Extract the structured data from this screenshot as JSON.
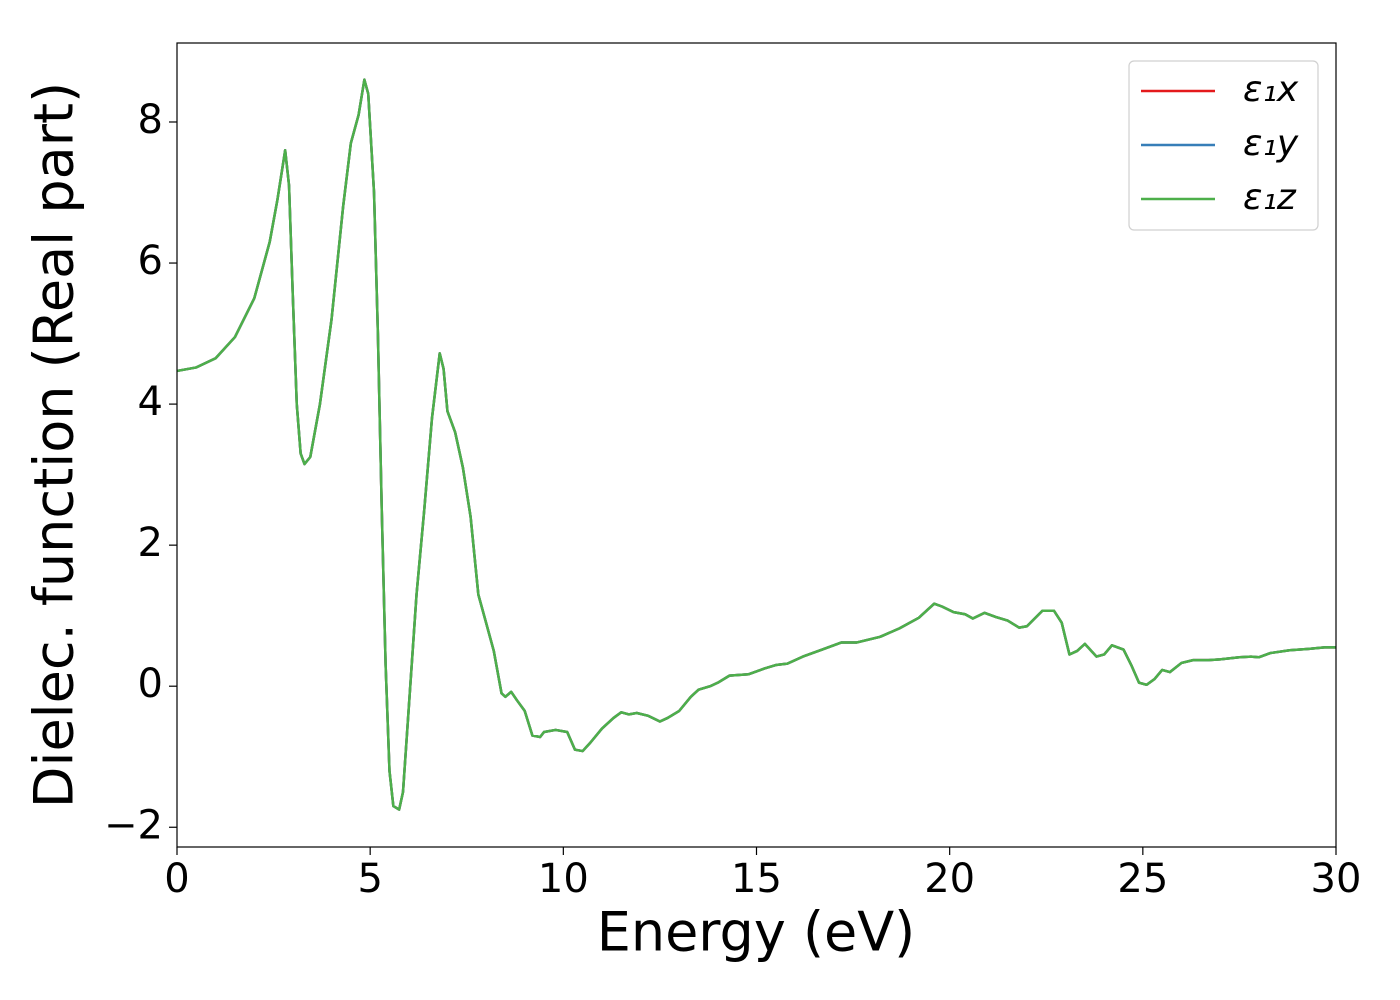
{
  "chart_data": {
    "type": "line",
    "xlabel": "Energy (eV)",
    "ylabel": "Dielec. function (Real part)",
    "xlim": [
      0,
      30
    ],
    "ylim": [
      -2.28,
      9.12
    ],
    "xticks": [
      0,
      5,
      10,
      15,
      20,
      25,
      30
    ],
    "yticks": [
      {
        "value": -2,
        "label": "−2"
      },
      0,
      2,
      4,
      6,
      8
    ],
    "legend": "upper right",
    "grid": false,
    "x": [
      0,
      0.5,
      1.0,
      1.5,
      2.0,
      2.4,
      2.6,
      2.8,
      2.9,
      3.0,
      3.1,
      3.2,
      3.3,
      3.45,
      3.7,
      4.0,
      4.3,
      4.5,
      4.7,
      4.85,
      4.95,
      5.1,
      5.2,
      5.3,
      5.4,
      5.5,
      5.6,
      5.75,
      5.85,
      6.0,
      6.2,
      6.4,
      6.6,
      6.8,
      6.9,
      7.0,
      7.2,
      7.4,
      7.6,
      7.8,
      8.0,
      8.2,
      8.4,
      8.5,
      8.65,
      8.8,
      9.0,
      9.2,
      9.4,
      9.5,
      9.8,
      10.1,
      10.3,
      10.5,
      10.7,
      11.0,
      11.3,
      11.5,
      11.7,
      11.9,
      12.2,
      12.5,
      12.7,
      13.0,
      13.3,
      13.5,
      13.8,
      14.0,
      14.3,
      14.8,
      15.2,
      15.5,
      15.8,
      16.2,
      16.7,
      17.2,
      17.6,
      18.2,
      18.7,
      19.2,
      19.6,
      19.8,
      20.1,
      20.4,
      20.6,
      20.9,
      21.2,
      21.5,
      21.8,
      22.0,
      22.4,
      22.7,
      22.9,
      23.1,
      23.3,
      23.5,
      23.8,
      24.0,
      24.2,
      24.5,
      24.7,
      24.9,
      25.1,
      25.3,
      25.5,
      25.7,
      26.0,
      26.3,
      26.7,
      27.0,
      27.5,
      27.8,
      28.0,
      28.3,
      28.8,
      29.3,
      29.7,
      30.0
    ],
    "series": [
      {
        "name": "ε₁x",
        "color": "#e41a1c",
        "values": [
          4.47,
          4.52,
          4.65,
          4.95,
          5.5,
          6.3,
          6.9,
          7.6,
          7.1,
          5.5,
          4.0,
          3.3,
          3.15,
          3.25,
          4.0,
          5.2,
          6.8,
          7.7,
          8.1,
          8.6,
          8.4,
          7.0,
          5.0,
          2.5,
          0.3,
          -1.2,
          -1.7,
          -1.75,
          -1.5,
          -0.3,
          1.3,
          2.5,
          3.8,
          4.72,
          4.5,
          3.9,
          3.6,
          3.1,
          2.4,
          1.3,
          0.9,
          0.5,
          -0.1,
          -0.15,
          -0.08,
          -0.2,
          -0.35,
          -0.7,
          -0.72,
          -0.65,
          -0.62,
          -0.65,
          -0.9,
          -0.92,
          -0.8,
          -0.6,
          -0.45,
          -0.37,
          -0.4,
          -0.38,
          -0.42,
          -0.5,
          -0.45,
          -0.35,
          -0.15,
          -0.05,
          0.0,
          0.05,
          0.15,
          0.17,
          0.25,
          0.3,
          0.32,
          0.42,
          0.52,
          0.62,
          0.62,
          0.7,
          0.82,
          0.97,
          1.17,
          1.13,
          1.05,
          1.02,
          0.96,
          1.04,
          0.98,
          0.93,
          0.83,
          0.85,
          1.07,
          1.07,
          0.9,
          0.45,
          0.5,
          0.6,
          0.42,
          0.45,
          0.58,
          0.52,
          0.3,
          0.05,
          0.02,
          0.1,
          0.23,
          0.2,
          0.33,
          0.37,
          0.37,
          0.38,
          0.41,
          0.42,
          0.41,
          0.47,
          0.51,
          0.53,
          0.55,
          0.55
        ]
      },
      {
        "name": "ε₁y",
        "color": "#377eb8",
        "values": [
          4.47,
          4.52,
          4.65,
          4.95,
          5.5,
          6.3,
          6.9,
          7.6,
          7.1,
          5.5,
          4.0,
          3.3,
          3.15,
          3.25,
          4.0,
          5.2,
          6.8,
          7.7,
          8.1,
          8.6,
          8.4,
          7.0,
          5.0,
          2.5,
          0.3,
          -1.2,
          -1.7,
          -1.75,
          -1.5,
          -0.3,
          1.3,
          2.5,
          3.8,
          4.72,
          4.5,
          3.9,
          3.6,
          3.1,
          2.4,
          1.3,
          0.9,
          0.5,
          -0.1,
          -0.15,
          -0.08,
          -0.2,
          -0.35,
          -0.7,
          -0.72,
          -0.65,
          -0.62,
          -0.65,
          -0.9,
          -0.92,
          -0.8,
          -0.6,
          -0.45,
          -0.37,
          -0.4,
          -0.38,
          -0.42,
          -0.5,
          -0.45,
          -0.35,
          -0.15,
          -0.05,
          0.0,
          0.05,
          0.15,
          0.17,
          0.25,
          0.3,
          0.32,
          0.42,
          0.52,
          0.62,
          0.62,
          0.7,
          0.82,
          0.97,
          1.17,
          1.13,
          1.05,
          1.02,
          0.96,
          1.04,
          0.98,
          0.93,
          0.83,
          0.85,
          1.07,
          1.07,
          0.9,
          0.45,
          0.5,
          0.6,
          0.42,
          0.45,
          0.58,
          0.52,
          0.3,
          0.05,
          0.02,
          0.1,
          0.23,
          0.2,
          0.33,
          0.37,
          0.37,
          0.38,
          0.41,
          0.42,
          0.41,
          0.47,
          0.51,
          0.53,
          0.55,
          0.55
        ]
      },
      {
        "name": "ε₁z",
        "color": "#4daf4a",
        "values": [
          4.47,
          4.52,
          4.65,
          4.95,
          5.5,
          6.3,
          6.9,
          7.6,
          7.1,
          5.5,
          4.0,
          3.3,
          3.15,
          3.25,
          4.0,
          5.2,
          6.8,
          7.7,
          8.1,
          8.6,
          8.4,
          7.0,
          5.0,
          2.5,
          0.3,
          -1.2,
          -1.7,
          -1.75,
          -1.5,
          -0.3,
          1.3,
          2.5,
          3.8,
          4.72,
          4.5,
          3.9,
          3.6,
          3.1,
          2.4,
          1.3,
          0.9,
          0.5,
          -0.1,
          -0.15,
          -0.08,
          -0.2,
          -0.35,
          -0.7,
          -0.72,
          -0.65,
          -0.62,
          -0.65,
          -0.9,
          -0.92,
          -0.8,
          -0.6,
          -0.45,
          -0.37,
          -0.4,
          -0.38,
          -0.42,
          -0.5,
          -0.45,
          -0.35,
          -0.15,
          -0.05,
          0.0,
          0.05,
          0.15,
          0.17,
          0.25,
          0.3,
          0.32,
          0.42,
          0.52,
          0.62,
          0.62,
          0.7,
          0.82,
          0.97,
          1.17,
          1.13,
          1.05,
          1.02,
          0.96,
          1.04,
          0.98,
          0.93,
          0.83,
          0.85,
          1.07,
          1.07,
          0.9,
          0.45,
          0.5,
          0.6,
          0.42,
          0.45,
          0.58,
          0.52,
          0.3,
          0.05,
          0.02,
          0.1,
          0.23,
          0.2,
          0.33,
          0.37,
          0.37,
          0.38,
          0.41,
          0.42,
          0.41,
          0.47,
          0.51,
          0.53,
          0.55,
          0.55
        ]
      }
    ]
  }
}
